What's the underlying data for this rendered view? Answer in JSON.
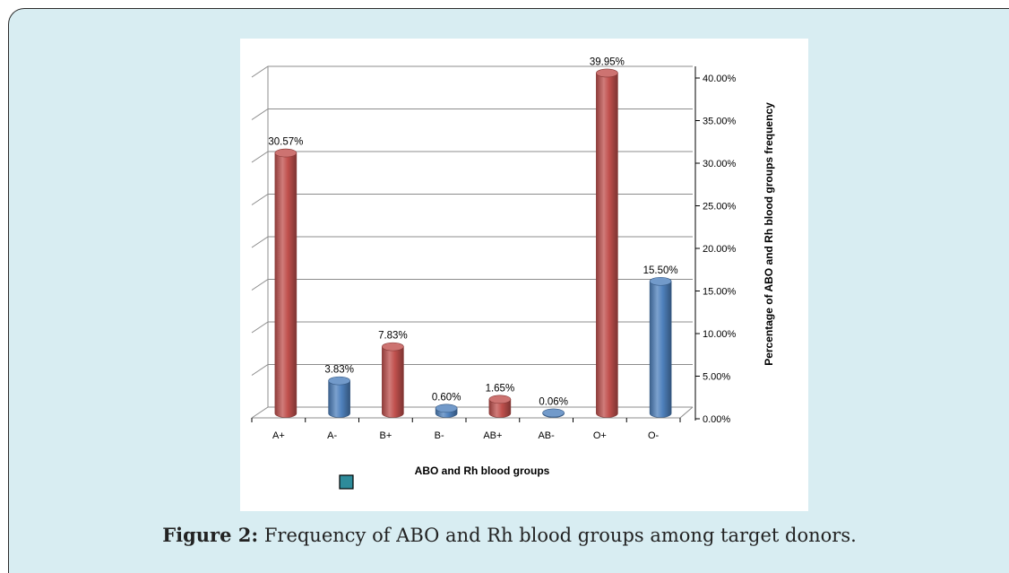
{
  "caption": {
    "label": "Figure 2:",
    "text": " Frequency of ABO and Rh blood groups among target donors."
  },
  "colors": {
    "panel_bg": "#d8edf2",
    "positive_bar": "#c0504d",
    "negative_bar": "#4f81bd",
    "legend_swatch": "#2e8b9a"
  },
  "chart_data": {
    "type": "bar",
    "categories": [
      "A+",
      "A-",
      "B+",
      "B-",
      "AB+",
      "AB-",
      "O+",
      "O-"
    ],
    "values": [
      30.57,
      3.83,
      7.83,
      0.6,
      1.65,
      0.06,
      39.95,
      15.5
    ],
    "data_labels": [
      "30.57%",
      "3.83%",
      "7.83%",
      "0.60%",
      "1.65%",
      "0.06%",
      "39.95%",
      "15.50%"
    ],
    "bar_colors": [
      "#c0504d",
      "#4f81bd",
      "#c0504d",
      "#4f81bd",
      "#c0504d",
      "#4f81bd",
      "#c0504d",
      "#4f81bd"
    ],
    "xlabel": "ABO and Rh blood groups",
    "ylabel": "Percentage of ABO and Rh blood groups frequency",
    "yticks": [
      "0.00%",
      "5.00%",
      "10.00%",
      "15.00%",
      "20.00%",
      "25.00%",
      "30.00%",
      "35.00%",
      "40.00%"
    ],
    "ylim": [
      0,
      40
    ],
    "y_axis_side": "right",
    "grid": true,
    "style": "3d-cylinder"
  }
}
